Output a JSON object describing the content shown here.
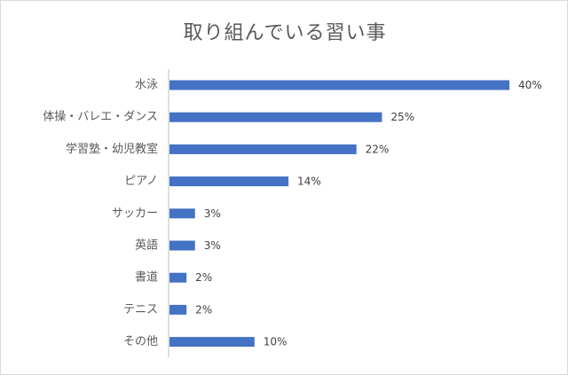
{
  "chart_data": {
    "type": "bar",
    "orientation": "horizontal",
    "title": "取り組んでいる習い事",
    "categories": [
      "水泳",
      "体操・バレエ・ダンス",
      "学習塾・幼児教室",
      "ピアノ",
      "サッカー",
      "英語",
      "書道",
      "テニス",
      "その他"
    ],
    "values": [
      40,
      25,
      22,
      14,
      3,
      3,
      2,
      2,
      10
    ],
    "value_labels": [
      "40%",
      "25%",
      "22%",
      "14%",
      "3%",
      "3%",
      "2%",
      "2%",
      "10%"
    ],
    "unit": "%",
    "xlim": [
      0,
      40
    ],
    "grid": false,
    "legend": "none",
    "bar_color": "#4472C4"
  }
}
